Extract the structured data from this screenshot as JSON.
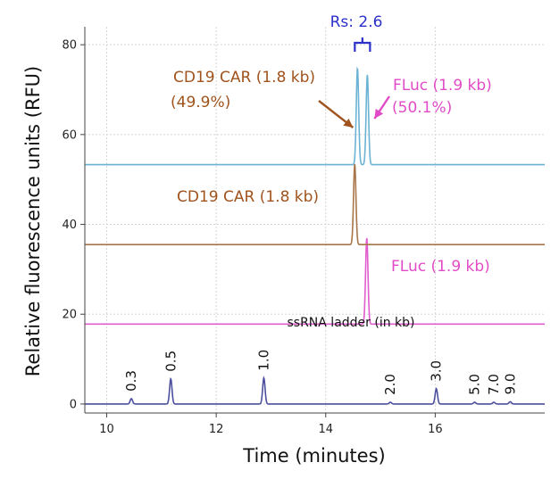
{
  "chart_data": {
    "type": "line",
    "title": "",
    "xlabel": "Time (minutes)",
    "ylabel": "Relative fluorescence units (RFU)",
    "xlim": [
      9.6,
      18.0
    ],
    "ylim": [
      -2,
      84
    ],
    "x_ticks": [
      10,
      12,
      14,
      16
    ],
    "y_ticks": [
      0,
      20,
      40,
      60,
      80
    ],
    "grid": true,
    "legend": "none",
    "series": [
      {
        "name": "ssRNA ladder (in kb)",
        "color": "#4b4f9e",
        "baseline": 0,
        "peaks": [
          {
            "x": 10.45,
            "y": 1.2,
            "label": "0.3"
          },
          {
            "x": 11.17,
            "y": 5.6,
            "label": "0.5"
          },
          {
            "x": 12.87,
            "y": 5.8,
            "label": "1.0"
          },
          {
            "x": 15.18,
            "y": 0.4,
            "label": "2.0"
          },
          {
            "x": 16.02,
            "y": 3.4,
            "label": "3.0"
          },
          {
            "x": 16.72,
            "y": 0.4,
            "label": "5.0"
          },
          {
            "x": 17.07,
            "y": 0.4,
            "label": "7.0"
          },
          {
            "x": 17.37,
            "y": 0.5,
            "label": "9.0"
          }
        ]
      },
      {
        "name": "FLuc (1.9 kb)",
        "color": "#e15ccd",
        "baseline": 17.8,
        "peaks": [
          {
            "x": 14.75,
            "y": 37.0
          }
        ]
      },
      {
        "name": "CD19 CAR (1.8 kb)",
        "color": "#a8764a",
        "baseline": 35.5,
        "peaks": [
          {
            "x": 14.53,
            "y": 53.5
          }
        ]
      },
      {
        "name": "",
        "color": "#6bb3d4",
        "baseline": 53.3,
        "peaks": [
          {
            "x": 14.58,
            "y": 74.8
          },
          {
            "x": 14.76,
            "y": 73.3
          }
        ]
      }
    ],
    "annotations": {
      "resolution": "Rs: 2.6",
      "mix_peak_1_name": "CD19 CAR (1.8 kb)",
      "mix_peak_1_pct": "(49.9%)",
      "mix_peak_2_name": "FLuc (1.9 kb)",
      "mix_peak_2_pct": "(50.1%)",
      "car_trace_label": "CD19 CAR (1.8 kb)",
      "fluc_trace_label": "FLuc (1.9 kb)",
      "ladder_label": "ssRNA ladder (in kb)"
    },
    "annotation_colors": {
      "resolution": "#2c31c9",
      "car": "#a0531c",
      "fluc": "#e24bc7"
    }
  }
}
